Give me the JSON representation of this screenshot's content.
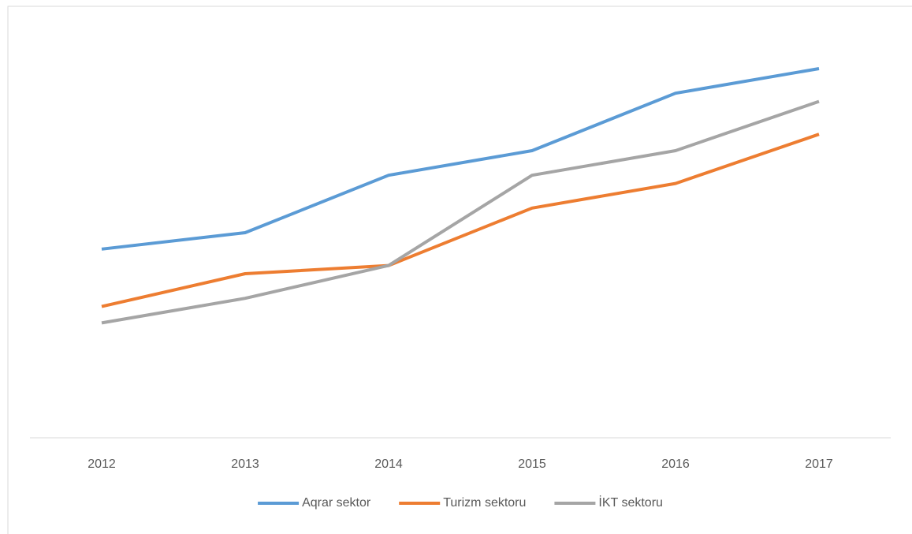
{
  "chart_data": {
    "type": "line",
    "categories": [
      "2012",
      "2013",
      "2014",
      "2015",
      "2016",
      "2017"
    ],
    "series": [
      {
        "name": "Aqrar sektor",
        "color": "#5b9bd5",
        "values": [
          46,
          50,
          64,
          70,
          84,
          90
        ]
      },
      {
        "name": "Turizm sektoru",
        "color": "#ed7d31",
        "values": [
          32,
          40,
          42,
          56,
          62,
          74
        ]
      },
      {
        "name": "İKT sektoru",
        "color": "#a5a5a5",
        "values": [
          28,
          34,
          42,
          64,
          70,
          82
        ]
      }
    ],
    "ylim": [
      0,
      100
    ],
    "legend": "bottom"
  }
}
